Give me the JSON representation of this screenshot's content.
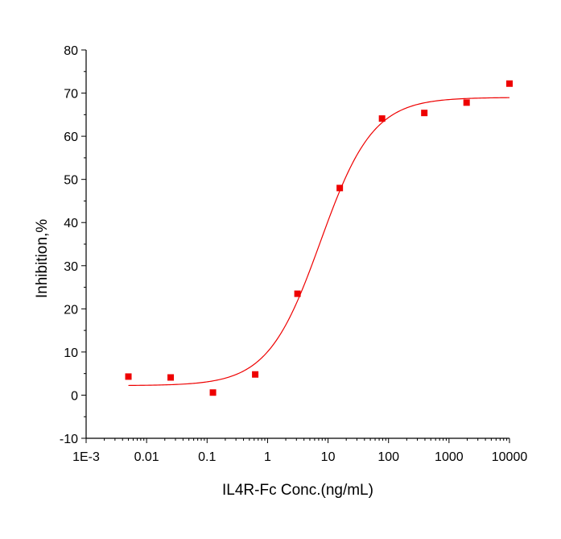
{
  "chart_data": {
    "type": "scatter",
    "title": "",
    "xlabel": "IL4R-Fc  Conc.(ng/mL)",
    "ylabel": "Inhibition,%",
    "x_scale": "log",
    "xlim": [
      0.001,
      10000
    ],
    "ylim": [
      -10,
      80
    ],
    "grid": false,
    "x_ticks": [
      0.001,
      0.01,
      0.1,
      1,
      10,
      100,
      1000,
      10000
    ],
    "x_tick_labels": [
      "1E-3",
      "0.01",
      "0.1",
      "1",
      "10",
      "100",
      "1000",
      "10000"
    ],
    "y_ticks": [
      -10,
      0,
      10,
      20,
      30,
      40,
      50,
      60,
      70,
      80
    ],
    "y_tick_labels": [
      "-10",
      "0",
      "10",
      "20",
      "30",
      "40",
      "50",
      "60",
      "70",
      "80"
    ],
    "series": [
      {
        "marker": "square",
        "color": "#ee0000",
        "x": [
          0.005,
          0.025,
          0.125,
          0.625,
          3.125,
          15.625,
          78.125,
          390.625,
          1953.125,
          10000
        ],
        "y": [
          4.3,
          4.1,
          0.6,
          4.8,
          23.5,
          48.0,
          64.1,
          65.4,
          67.8,
          72.2
        ]
      }
    ],
    "fit": {
      "model": "4PL",
      "color": "#ee0000",
      "bottom": 2.2,
      "top": 69.0,
      "ec50": 7.5,
      "hill": 1.0
    }
  }
}
